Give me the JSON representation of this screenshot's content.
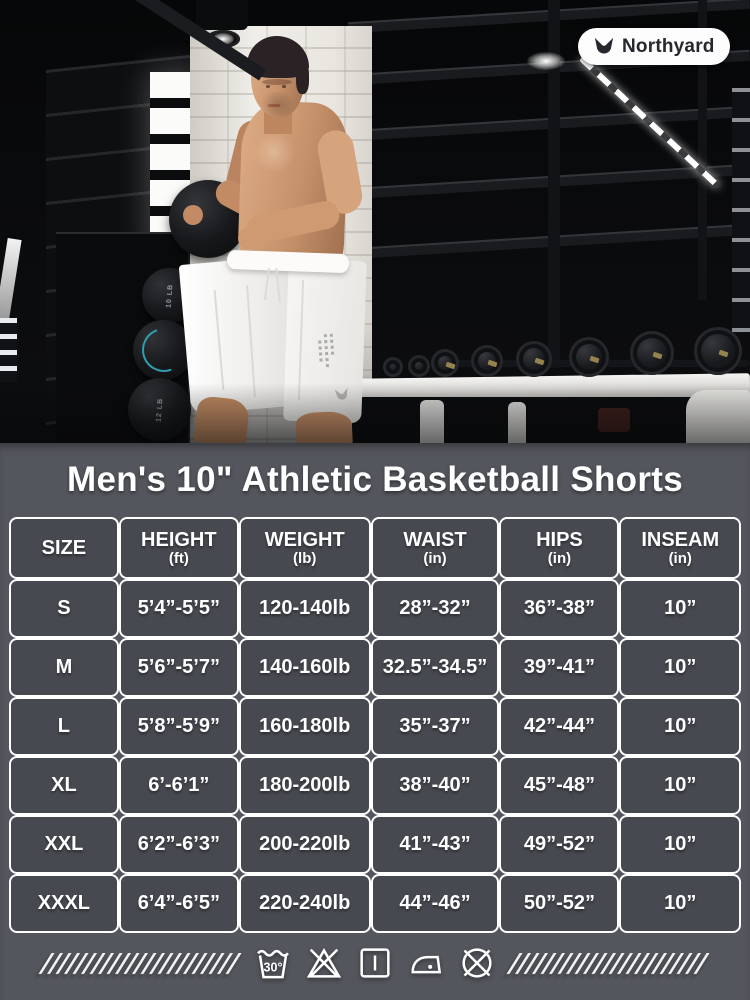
{
  "brand": {
    "name": "Northyard"
  },
  "title": "Men's 10\" Athletic Basketball Shorts",
  "hero": {
    "medicine_ball_labels": [
      "10 LB",
      "12 LB"
    ]
  },
  "size_chart": {
    "columns": [
      {
        "label": "SIZE",
        "sub": ""
      },
      {
        "label": "HEIGHT",
        "sub": "(ft)"
      },
      {
        "label": "WEIGHT",
        "sub": "(lb)"
      },
      {
        "label": "WAIST",
        "sub": "(in)"
      },
      {
        "label": "HIPS",
        "sub": "(in)"
      },
      {
        "label": "INSEAM",
        "sub": "(in)"
      }
    ],
    "rows": [
      [
        "S",
        "5’4”-5’5”",
        "120-140lb",
        "28”-32”",
        "36”-38”",
        "10”"
      ],
      [
        "M",
        "5’6”-5’7”",
        "140-160lb",
        "32.5”-34.5”",
        "39”-41”",
        "10”"
      ],
      [
        "L",
        "5’8”-5’9”",
        "160-180lb",
        "35”-37”",
        "42”-44”",
        "10”"
      ],
      [
        "XL",
        "6’-6’1”",
        "180-200lb",
        "38”-40”",
        "45”-48”",
        "10”"
      ],
      [
        "XXL",
        "6’2”-6’3”",
        "200-220lb",
        "41”-43”",
        "49”-52”",
        "10”"
      ],
      [
        "XXXL",
        "6’4”-6’5”",
        "220-240lb",
        "44”-46”",
        "50”-52”",
        "10”"
      ]
    ]
  },
  "care": {
    "wash_temp": "30°",
    "icons": [
      "machine-wash-30",
      "do-not-bleach",
      "drip-dry",
      "iron",
      "do-not-dry-clean"
    ]
  },
  "colors": {
    "panel": "#53565c",
    "cell": "#46494f",
    "grid": "#ffffff",
    "teal_accent": "#2f9fae"
  }
}
